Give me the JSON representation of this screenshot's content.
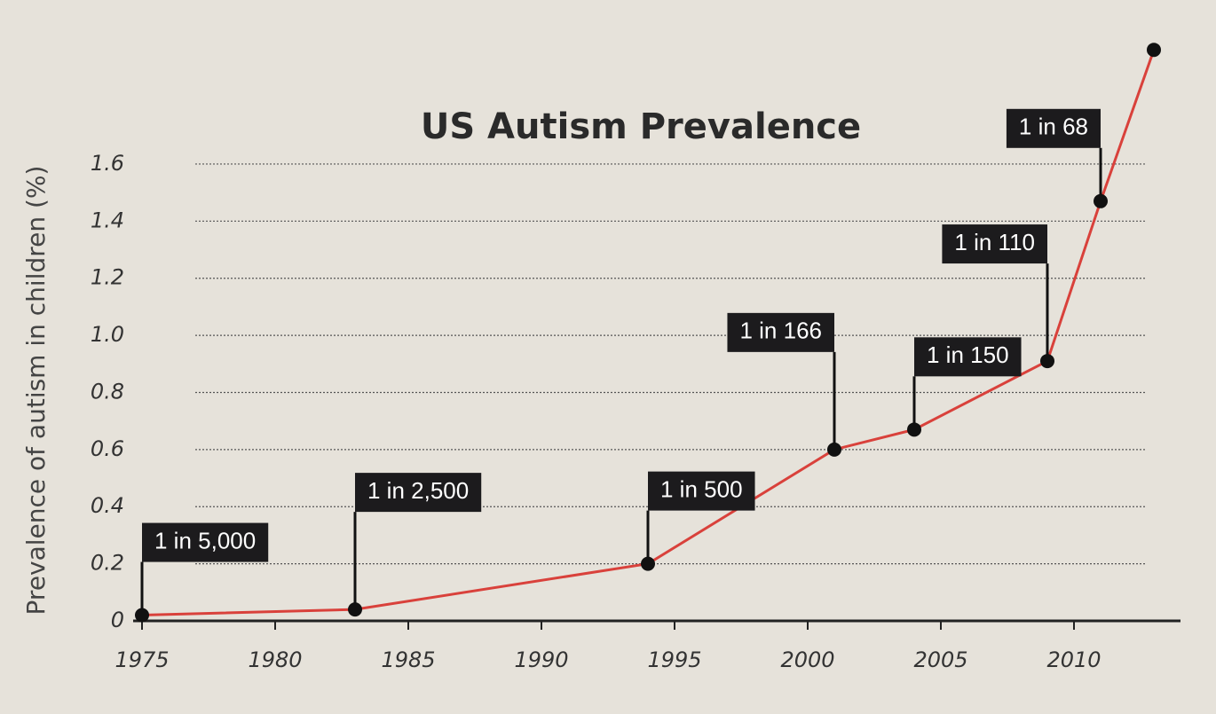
{
  "chart_data": {
    "type": "line",
    "title": "US Autism Prevalence",
    "y_label": "Prevalence of autism in children (%)",
    "x": [
      1975,
      1983,
      1994,
      2001,
      2004,
      2009,
      2011,
      2013
    ],
    "series": [
      {
        "name": "US autism prevalence",
        "color": "#d9413b",
        "values": [
          0.02,
          0.04,
          0.2,
          0.6,
          0.67,
          0.91,
          1.47,
          2.0
        ],
        "value_labels": [
          "1 in 5,000",
          "1 in 2,500",
          "1 in 500",
          "1 in 166",
          "1 in 150",
          "1 in 110",
          "1 in 68",
          null
        ]
      }
    ],
    "xlim": [
      1975,
      2014
    ],
    "xticks": [
      1975,
      1980,
      1985,
      1990,
      1995,
      2000,
      2005,
      2010
    ],
    "ylim": [
      0,
      2.1
    ],
    "yticks": [
      0,
      0.2,
      0.4,
      0.6,
      0.8,
      {
        "value": 1,
        "label": "1.0"
      },
      1.2,
      1.4,
      1.6
    ],
    "grid": true
  }
}
